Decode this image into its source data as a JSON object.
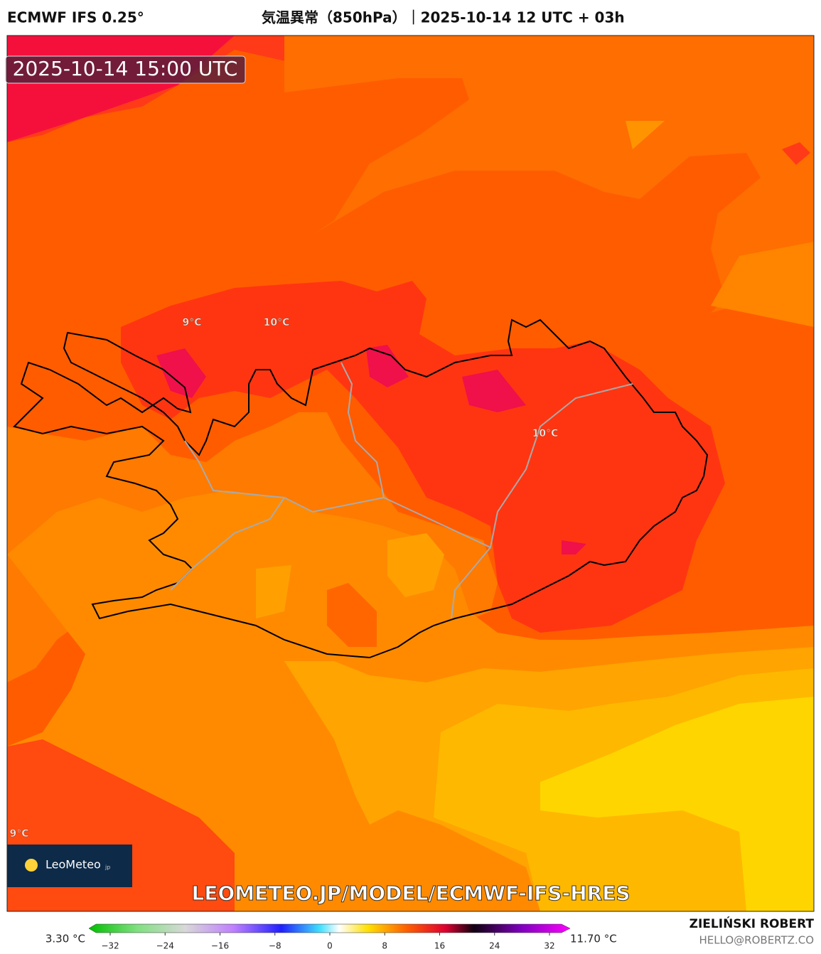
{
  "header": {
    "model": "ECMWF IFS 0.25°",
    "title": "気温異常（850hPa）｜2025-10-14 12 UTC + 03h"
  },
  "map": {
    "valid_time": "2025-10-14 15:00 UTC",
    "contour_labels": [
      "9°C",
      "10°C",
      "10°C",
      "9°C"
    ],
    "logo": {
      "name": "LeoMeteo",
      "suffix": "jp"
    },
    "url": "LEOMETEO.JP/MODEL/ECMWF-IFS-HRES"
  },
  "colorbar": {
    "min_label": "3.30 °C",
    "max_label": "11.70 °C",
    "ticks": [
      {
        "value": -32,
        "label": "−32"
      },
      {
        "value": -24,
        "label": "−24"
      },
      {
        "value": -16,
        "label": "−16"
      },
      {
        "value": -8,
        "label": "−8"
      },
      0,
      8,
      16,
      24,
      32
    ]
  },
  "footer": {
    "author": "ZIELIŃSKI ROBERT",
    "email": "HELLO@ROBERTZ.CO"
  }
}
